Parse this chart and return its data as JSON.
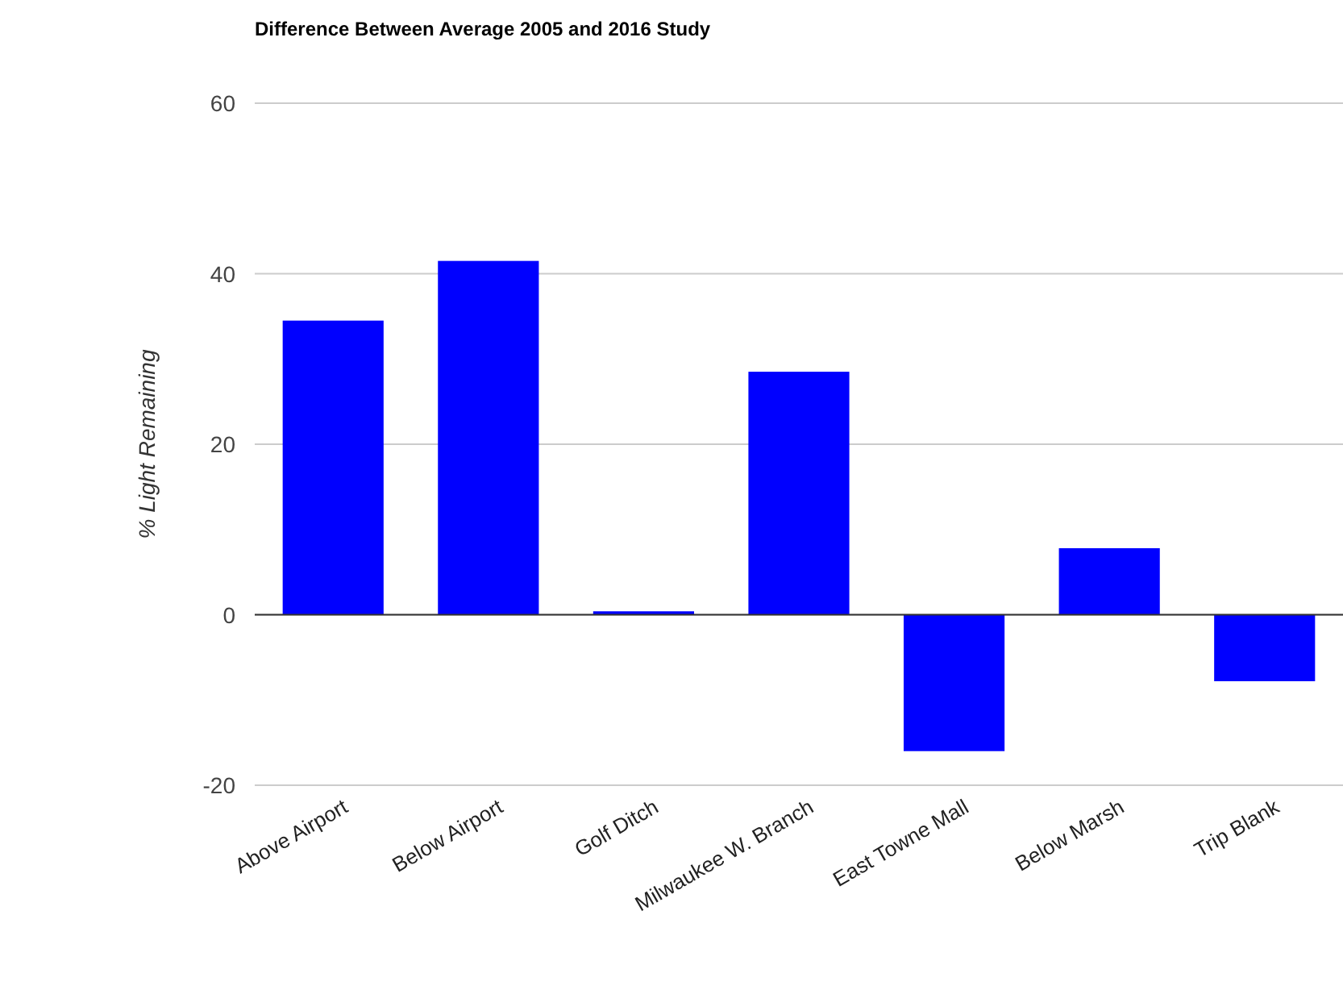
{
  "chart_data": {
    "type": "bar",
    "title": "Difference Between Average 2005 and 2016 Study",
    "ylabel": "% Light Remaining",
    "categories": [
      "Above Airport",
      "Below Airport",
      "Golf Ditch",
      "Milwaukee W. Branch",
      "East Towne Mall",
      "Below Marsh",
      "Trip Blank"
    ],
    "values": [
      34.5,
      41.5,
      0.4,
      28.5,
      -16,
      7.8,
      -7.8
    ],
    "color": "#0000ff",
    "ylim": [
      -20,
      60
    ],
    "yticks": [
      -20,
      0,
      20,
      40,
      60
    ],
    "grid": "y"
  }
}
